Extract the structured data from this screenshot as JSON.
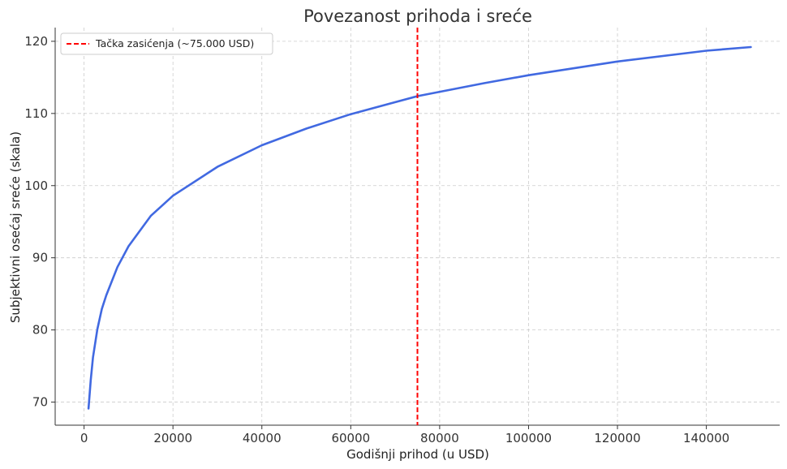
{
  "chart_data": {
    "type": "line",
    "title": "Povezanost prihoda i sreće",
    "xlabel": "Godišnji prihod (u USD)",
    "ylabel": "Subjektivni osećaj sreće (skala)",
    "xlim": [
      -6500,
      156500
    ],
    "ylim": [
      66.8,
      121.9
    ],
    "x_ticks": [
      0,
      20000,
      40000,
      60000,
      80000,
      100000,
      120000,
      140000
    ],
    "x_tick_labels": [
      "0",
      "20000",
      "40000",
      "60000",
      "80000",
      "100000",
      "120000",
      "140000"
    ],
    "y_ticks": [
      70,
      80,
      90,
      100,
      110,
      120
    ],
    "y_tick_labels": [
      "70",
      "80",
      "90",
      "100",
      "110",
      "120"
    ],
    "grid": true,
    "legend_position": "top-left",
    "series": [
      {
        "color": "#4169e1",
        "x": [
          1000,
          1500,
          2000,
          3000,
          4000,
          5000,
          7500,
          10000,
          15000,
          20000,
          30000,
          40000,
          50000,
          60000,
          75000,
          90000,
          100000,
          120000,
          140000,
          150000
        ],
        "values": [
          69.1,
          73.0,
          76.2,
          80.1,
          82.9,
          84.8,
          88.7,
          91.6,
          95.8,
          98.6,
          102.6,
          105.6,
          107.9,
          109.9,
          112.4,
          114.2,
          115.3,
          117.2,
          118.7,
          119.2
        ]
      }
    ],
    "reference_lines": [
      {
        "orientation": "vertical",
        "x": 75000,
        "name": "Tačka zasićenja (~75.000 USD)",
        "color": "#ff0000",
        "style": "dashed"
      }
    ]
  }
}
